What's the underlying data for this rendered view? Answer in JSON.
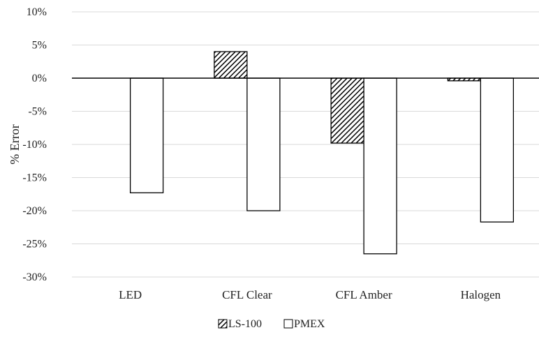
{
  "chart_data": {
    "type": "bar",
    "categories": [
      "LED",
      "CFL Clear",
      "CFL Amber",
      "Halogen"
    ],
    "series": [
      {
        "name": "LS-100",
        "values": [
          0,
          4,
          -9.8,
          -0.4
        ],
        "fill": "hatched"
      },
      {
        "name": "PMEX",
        "values": [
          -17.3,
          -20,
          -26.5,
          -21.7
        ],
        "fill": "white"
      }
    ],
    "ylabel": "% Error",
    "ylim": [
      -30,
      10
    ],
    "yticks": [
      10,
      5,
      0,
      -5,
      -10,
      -15,
      -20,
      -25,
      -30
    ],
    "ytick_labels": [
      "10%",
      "5%",
      "0%",
      "-5%",
      "-10%",
      "-15%",
      "-20%",
      "-25%",
      "-30%"
    ],
    "grid": true,
    "legend_position": "bottom-center"
  },
  "colors": {
    "grid": "#d9d9d9",
    "bar_stroke": "#000000",
    "bar_fill": "#ffffff",
    "hatch": "#000000"
  }
}
